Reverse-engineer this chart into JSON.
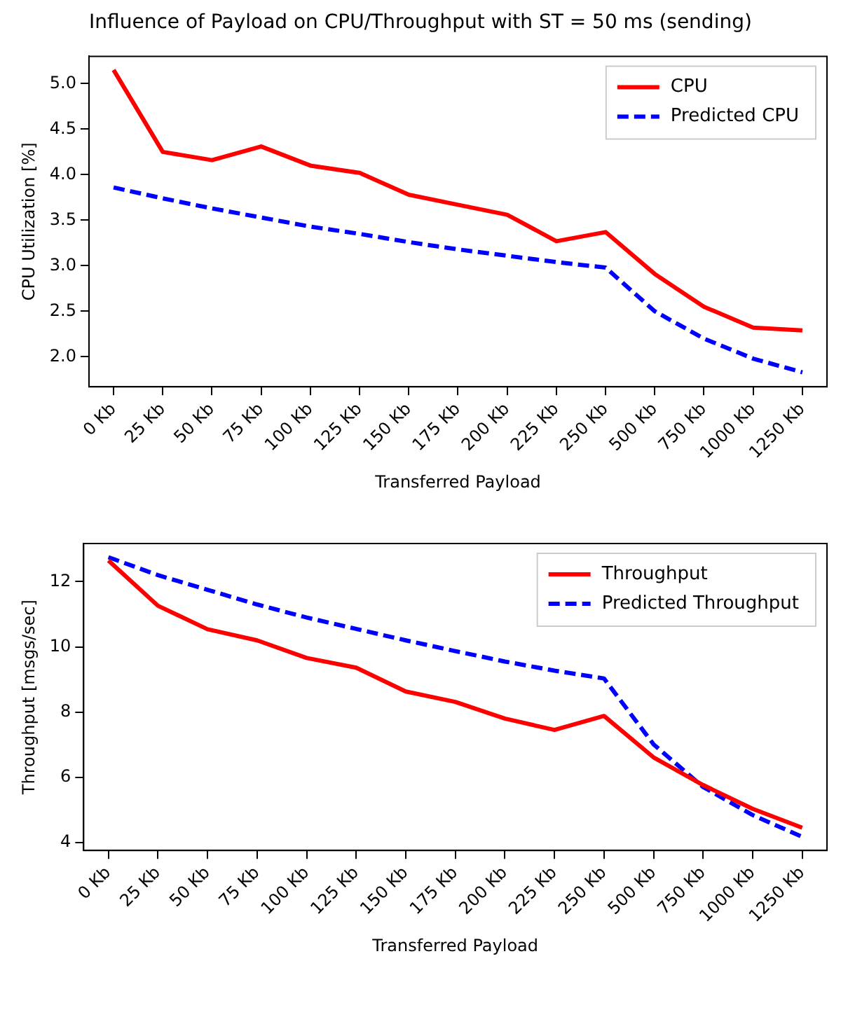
{
  "chart_data": [
    {
      "type": "line",
      "title": "Influence of Payload on CPU/Throughput with ST = 50 ms (sending)",
      "xlabel": "Transferred Payload",
      "ylabel": "CPU Utilization [%]",
      "categories": [
        "0 Kb",
        "25 Kb",
        "50 Kb",
        "75 Kb",
        "100 Kb",
        "125 Kb",
        "150 Kb",
        "175 Kb",
        "200 Kb",
        "225 Kb",
        "250 Kb",
        "500 Kb",
        "750 Kb",
        "1000 Kb",
        "1250 Kb"
      ],
      "series": [
        {
          "name": "CPU",
          "color": "#ff0000",
          "line_style": "solid",
          "values": [
            5.15,
            4.25,
            4.16,
            4.31,
            4.1,
            4.02,
            3.78,
            3.67,
            3.56,
            3.27,
            3.37,
            2.91,
            2.55,
            2.32,
            2.29
          ]
        },
        {
          "name": "Predicted CPU",
          "color": "#0000ff",
          "line_style": "dashed",
          "values": [
            3.86,
            3.74,
            3.63,
            3.53,
            3.43,
            3.35,
            3.26,
            3.18,
            3.11,
            3.04,
            2.98,
            2.5,
            2.2,
            1.98,
            1.83
          ]
        }
      ],
      "ylim": [
        1.67,
        5.3
      ],
      "yticks": [
        {
          "value": 2,
          "label": "2.0"
        },
        {
          "value": 2.5,
          "label": "2.5"
        },
        {
          "value": 3,
          "label": "3.0"
        },
        {
          "value": 3.5,
          "label": "3.5"
        },
        {
          "value": 4,
          "label": "4.0"
        },
        {
          "value": 4.5,
          "label": "4.5"
        },
        {
          "value": 5,
          "label": "5.0"
        }
      ],
      "grid": false,
      "legend": "top right",
      "marker": "none"
    },
    {
      "type": "line",
      "xlabel": "Transferred Payload",
      "ylabel": "Throughput [msgs/sec]",
      "categories": [
        "0 Kb",
        "25 Kb",
        "50 Kb",
        "75 Kb",
        "100 Kb",
        "125 Kb",
        "150 Kb",
        "175 Kb",
        "200 Kb",
        "225 Kb",
        "250 Kb",
        "500 Kb",
        "750 Kb",
        "1000 Kb",
        "1250 Kb"
      ],
      "series": [
        {
          "name": "Throughput",
          "color": "#ff0000",
          "line_style": "solid",
          "values": [
            12.65,
            11.26,
            10.54,
            10.2,
            9.66,
            9.36,
            8.63,
            8.31,
            7.8,
            7.45,
            7.88,
            6.61,
            5.76,
            5.03,
            4.45
          ]
        },
        {
          "name": "Predicted Throughput",
          "color": "#0000ff",
          "line_style": "dashed",
          "values": [
            12.75,
            12.2,
            11.75,
            11.3,
            10.9,
            10.55,
            10.2,
            9.87,
            9.55,
            9.27,
            9.03,
            7.01,
            5.7,
            4.84,
            4.17
          ]
        }
      ],
      "ylim": [
        3.75,
        13.17
      ],
      "yticks": [
        4,
        6,
        8,
        10,
        12
      ],
      "grid": false,
      "legend": "top right",
      "marker": "none"
    }
  ]
}
